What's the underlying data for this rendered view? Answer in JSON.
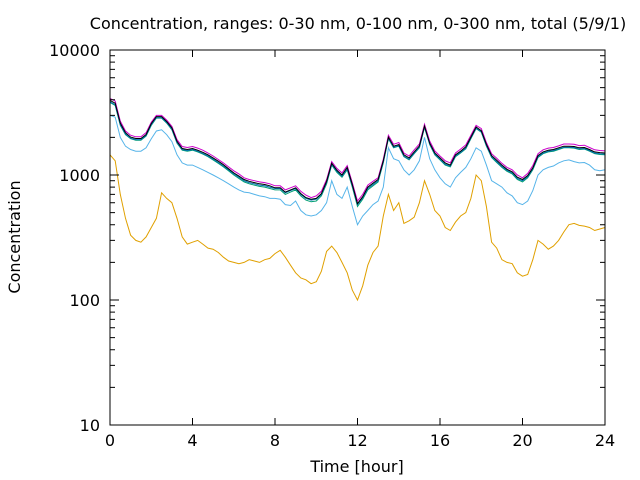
{
  "chart_data": {
    "type": "line",
    "title": "Concentration, ranges: 0-30 nm, 0-100 nm, 0-300 nm, total (5/9/1)",
    "xlabel": "Time [hour]",
    "ylabel": "Concentration",
    "xlim": [
      0,
      24
    ],
    "ylim": [
      10,
      10000
    ],
    "yscale": "log",
    "grid": false,
    "legend": "none",
    "x_ticks": [
      0,
      4,
      8,
      12,
      16,
      20,
      24
    ],
    "x_tick_labels": [
      "0",
      "4",
      "8",
      "12",
      "16",
      "20",
      "24"
    ],
    "y_ticks": [
      10,
      100,
      1000,
      10000
    ],
    "y_tick_labels": [
      "10",
      "100",
      "1000",
      "10000"
    ],
    "x": [
      0.0,
      0.25,
      0.5,
      0.75,
      1.0,
      1.25,
      1.5,
      1.75,
      2.0,
      2.25,
      2.5,
      2.75,
      3.0,
      3.25,
      3.5,
      3.75,
      4.0,
      4.25,
      4.5,
      4.75,
      5.0,
      5.25,
      5.5,
      5.75,
      6.0,
      6.25,
      6.5,
      6.75,
      7.0,
      7.25,
      7.5,
      7.75,
      8.0,
      8.25,
      8.5,
      8.75,
      9.0,
      9.25,
      9.5,
      9.75,
      10.0,
      10.25,
      10.5,
      10.75,
      11.0,
      11.25,
      11.5,
      11.75,
      12.0,
      12.25,
      12.5,
      12.75,
      13.0,
      13.25,
      13.5,
      13.75,
      14.0,
      14.25,
      14.5,
      14.75,
      15.0,
      15.25,
      15.5,
      15.75,
      16.0,
      16.25,
      16.5,
      16.75,
      17.0,
      17.25,
      17.5,
      17.75,
      18.0,
      18.25,
      18.5,
      18.75,
      19.0,
      19.25,
      19.5,
      19.75,
      20.0,
      20.25,
      20.5,
      20.75,
      21.0,
      21.25,
      21.5,
      21.75,
      22.0,
      22.25,
      22.5,
      22.75,
      23.0,
      23.25,
      23.5,
      23.75,
      24.0
    ],
    "series": [
      {
        "color": "#e0a000",
        "values": [
          1450,
          1300,
          700,
          450,
          330,
          300,
          290,
          320,
          380,
          450,
          720,
          650,
          600,
          450,
          320,
          280,
          290,
          300,
          280,
          260,
          255,
          240,
          220,
          205,
          200,
          195,
          200,
          210,
          205,
          200,
          210,
          215,
          235,
          250,
          220,
          190,
          165,
          150,
          145,
          135,
          140,
          170,
          245,
          270,
          240,
          200,
          165,
          120,
          100,
          130,
          190,
          240,
          270,
          470,
          700,
          520,
          600,
          410,
          430,
          460,
          600,
          900,
          700,
          520,
          470,
          380,
          360,
          420,
          470,
          500,
          650,
          1000,
          900,
          560,
          290,
          260,
          210,
          200,
          195,
          165,
          155,
          160,
          210,
          300,
          280,
          255,
          270,
          300,
          350,
          400,
          410,
          395,
          390,
          380,
          360,
          370,
          380
        ]
      },
      {
        "color": "#56b4e9",
        "values": [
          3000,
          2900,
          2000,
          1700,
          1600,
          1550,
          1550,
          1650,
          1950,
          2250,
          2300,
          2100,
          1850,
          1450,
          1250,
          1200,
          1200,
          1150,
          1100,
          1050,
          1000,
          950,
          900,
          850,
          800,
          760,
          730,
          720,
          700,
          680,
          670,
          650,
          650,
          640,
          580,
          570,
          620,
          520,
          480,
          470,
          480,
          520,
          600,
          900,
          700,
          650,
          800,
          560,
          400,
          470,
          520,
          580,
          620,
          800,
          1650,
          1350,
          1300,
          1100,
          1000,
          1100,
          1300,
          2000,
          1350,
          1100,
          950,
          850,
          800,
          950,
          1050,
          1150,
          1350,
          1650,
          1550,
          1200,
          900,
          850,
          800,
          720,
          680,
          600,
          580,
          620,
          750,
          1000,
          1100,
          1150,
          1180,
          1250,
          1300,
          1320,
          1280,
          1250,
          1260,
          1200,
          1100,
          1080,
          1100
        ]
      },
      {
        "color": "#009e73",
        "values": [
          3800,
          3600,
          2500,
          2100,
          1950,
          1900,
          1900,
          2050,
          2500,
          2850,
          2850,
          2600,
          2300,
          1800,
          1580,
          1550,
          1580,
          1530,
          1470,
          1400,
          1320,
          1240,
          1160,
          1080,
          1000,
          940,
          880,
          850,
          830,
          810,
          800,
          780,
          760,
          760,
          700,
          730,
          760,
          680,
          630,
          610,
          620,
          680,
          850,
          1200,
          1050,
          960,
          1100,
          800,
          560,
          640,
          760,
          820,
          880,
          1250,
          1950,
          1650,
          1700,
          1400,
          1320,
          1480,
          1650,
          2400,
          1750,
          1450,
          1320,
          1200,
          1160,
          1400,
          1500,
          1620,
          1950,
          2350,
          2200,
          1700,
          1380,
          1260,
          1150,
          1070,
          1020,
          920,
          880,
          950,
          1100,
          1380,
          1480,
          1530,
          1550,
          1600,
          1650,
          1650,
          1640,
          1600,
          1610,
          1550,
          1480,
          1460,
          1450
        ]
      },
      {
        "color": "#0072b2",
        "values": [
          3850,
          3650,
          2530,
          2130,
          1970,
          1920,
          1920,
          2070,
          2530,
          2880,
          2880,
          2630,
          2330,
          1820,
          1600,
          1570,
          1600,
          1550,
          1490,
          1420,
          1340,
          1260,
          1180,
          1100,
          1020,
          960,
          900,
          870,
          850,
          830,
          820,
          800,
          780,
          780,
          720,
          750,
          780,
          700,
          650,
          630,
          640,
          700,
          870,
          1220,
          1070,
          980,
          1120,
          820,
          580,
          660,
          780,
          840,
          900,
          1270,
          1970,
          1670,
          1720,
          1420,
          1340,
          1500,
          1670,
          2420,
          1770,
          1470,
          1340,
          1220,
          1180,
          1420,
          1520,
          1640,
          1970,
          2370,
          2220,
          1720,
          1400,
          1280,
          1170,
          1090,
          1040,
          940,
          900,
          970,
          1120,
          1400,
          1500,
          1550,
          1570,
          1620,
          1670,
          1670,
          1660,
          1620,
          1630,
          1570,
          1500,
          1480,
          1470
        ]
      },
      {
        "color": "#cc00cc",
        "values": [
          4100,
          3900,
          2700,
          2250,
          2080,
          2020,
          2020,
          2180,
          2650,
          3000,
          3000,
          2750,
          2450,
          1920,
          1690,
          1660,
          1690,
          1640,
          1580,
          1500,
          1420,
          1330,
          1250,
          1160,
          1080,
          1020,
          950,
          920,
          900,
          880,
          870,
          850,
          820,
          820,
          760,
          790,
          820,
          740,
          690,
          660,
          680,
          740,
          920,
          1280,
          1130,
          1040,
          1190,
          870,
          620,
          700,
          830,
          890,
          950,
          1340,
          2080,
          1760,
          1820,
          1500,
          1420,
          1590,
          1770,
          2550,
          1870,
          1560,
          1420,
          1300,
          1250,
          1500,
          1610,
          1740,
          2080,
          2500,
          2350,
          1820,
          1480,
          1360,
          1240,
          1150,
          1100,
          1000,
          950,
          1030,
          1190,
          1480,
          1590,
          1640,
          1660,
          1710,
          1770,
          1770,
          1760,
          1720,
          1730,
          1660,
          1590,
          1570,
          1560
        ]
      },
      {
        "color": "#000000",
        "values": [
          3950,
          3750,
          2600,
          2180,
          2010,
          1960,
          1960,
          2110,
          2580,
          2930,
          2930,
          2680,
          2380,
          1860,
          1630,
          1600,
          1630,
          1580,
          1520,
          1450,
          1370,
          1290,
          1210,
          1120,
          1040,
          980,
          920,
          890,
          870,
          850,
          840,
          820,
          790,
          790,
          730,
          760,
          790,
          710,
          660,
          640,
          650,
          710,
          890,
          1240,
          1090,
          1000,
          1150,
          840,
          590,
          670,
          800,
          860,
          920,
          1300,
          2010,
          1700,
          1750,
          1450,
          1370,
          1530,
          1710,
          2460,
          1800,
          1500,
          1370,
          1250,
          1200,
          1450,
          1550,
          1680,
          2010,
          2420,
          2260,
          1760,
          1430,
          1310,
          1200,
          1110,
          1060,
          960,
          920,
          990,
          1140,
          1430,
          1530,
          1580,
          1600,
          1650,
          1700,
          1700,
          1690,
          1650,
          1660,
          1600,
          1530,
          1510,
          1500
        ]
      }
    ]
  }
}
